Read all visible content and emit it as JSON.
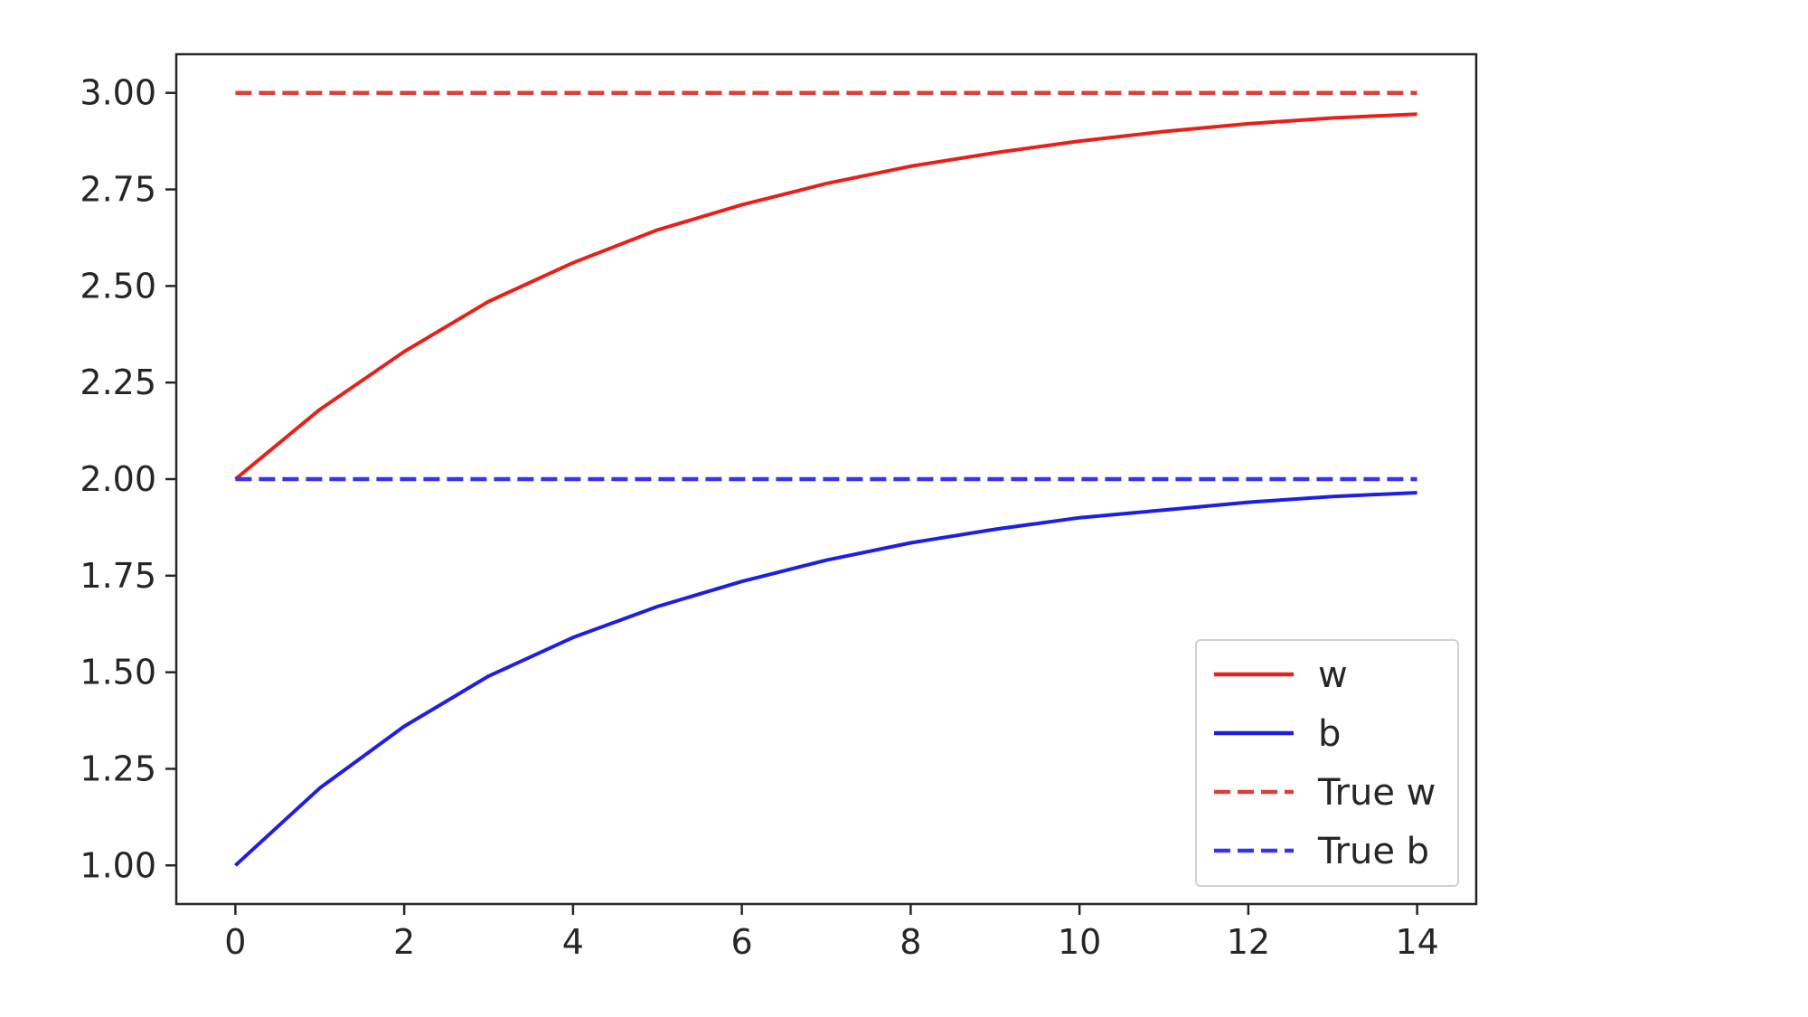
{
  "chart_data": {
    "type": "line",
    "title": "",
    "xlabel": "",
    "ylabel": "",
    "xlim": [
      -0.7,
      14.7
    ],
    "ylim": [
      0.9,
      3.1
    ],
    "xticks": [
      0,
      2,
      4,
      6,
      8,
      10,
      12,
      14
    ],
    "xtick_labels": [
      "0",
      "2",
      "4",
      "6",
      "8",
      "10",
      "12",
      "14"
    ],
    "yticks": [
      1.0,
      1.25,
      1.5,
      1.75,
      2.0,
      2.25,
      2.5,
      2.75,
      3.0
    ],
    "ytick_labels": [
      "1.00",
      "1.25",
      "1.50",
      "1.75",
      "2.00",
      "2.25",
      "2.50",
      "2.75",
      "3.00"
    ],
    "grid": false,
    "legend_position": "lower-right",
    "x": [
      0,
      1,
      2,
      3,
      4,
      5,
      6,
      7,
      8,
      9,
      10,
      11,
      12,
      13,
      14
    ],
    "series": [
      {
        "name": "w",
        "color": "#e8201a",
        "style": "solid",
        "values": [
          2.0,
          2.18,
          2.33,
          2.46,
          2.56,
          2.645,
          2.71,
          2.765,
          2.81,
          2.845,
          2.875,
          2.9,
          2.92,
          2.935,
          2.945
        ]
      },
      {
        "name": "b",
        "color": "#1f1fe0",
        "style": "solid",
        "values": [
          1.0,
          1.2,
          1.36,
          1.49,
          1.59,
          1.67,
          1.735,
          1.79,
          1.835,
          1.87,
          1.9,
          1.92,
          1.94,
          1.955,
          1.965
        ]
      },
      {
        "name": "True w",
        "color": "#d9403a",
        "style": "dashed",
        "values": [
          3.0,
          3.0,
          3.0,
          3.0,
          3.0,
          3.0,
          3.0,
          3.0,
          3.0,
          3.0,
          3.0,
          3.0,
          3.0,
          3.0,
          3.0
        ]
      },
      {
        "name": "True b",
        "color": "#3434ee",
        "style": "dashed",
        "values": [
          2.0,
          2.0,
          2.0,
          2.0,
          2.0,
          2.0,
          2.0,
          2.0,
          2.0,
          2.0,
          2.0,
          2.0,
          2.0,
          2.0,
          2.0
        ]
      }
    ]
  }
}
